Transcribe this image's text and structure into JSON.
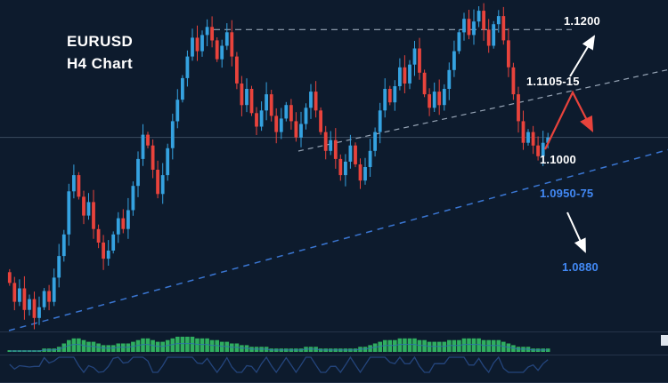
{
  "header": {
    "symbol": "EURUSD",
    "timeframe_label": "H4 Chart"
  },
  "annotations": {
    "resistance_label": "1.1200",
    "supply_zone_label": "1.1105-15",
    "support_label": "1.1000",
    "demand_zone_label": "1.0950-75",
    "target_label": "1.0880"
  },
  "colors": {
    "background": "#0d1b2d",
    "bull": "#35a2e0",
    "bear": "#e8433c",
    "histogram": "#2fae5f",
    "trendline_blue": "#3a76d2",
    "label_blue": "#4289f5",
    "dashed_gray": "#97a5b6",
    "grid": "#3a4a5e",
    "white": "#ffffff"
  },
  "chart_data": {
    "type": "candlestick",
    "title": "EURUSD H4 Chart",
    "symbol": "EURUSD",
    "timeframe": "H4",
    "price_axis": {
      "min": 1.0645,
      "max": 1.1245
    },
    "first_open": 1.075,
    "closes": [
      1.073,
      1.0695,
      1.072,
      1.068,
      1.07,
      1.0665,
      1.0685,
      1.0715,
      1.0695,
      1.074,
      1.078,
      1.082,
      1.09,
      1.093,
      1.089,
      1.0855,
      1.088,
      1.083,
      1.0805,
      1.0775,
      1.079,
      1.082,
      1.085,
      1.083,
      1.0865,
      1.091,
      1.096,
      1.1005,
      1.0985,
      1.094,
      1.0895,
      1.093,
      1.098,
      1.103,
      1.107,
      1.111,
      1.115,
      1.1185,
      1.116,
      1.119,
      1.1205,
      1.118,
      1.1145,
      1.117,
      1.1195,
      1.115,
      1.11,
      1.106,
      1.109,
      1.1045,
      1.102,
      1.105,
      1.108,
      1.104,
      1.101,
      1.1035,
      1.106,
      1.103,
      1.1,
      1.1025,
      1.1055,
      1.1085,
      1.105,
      1.101,
      1.0975,
      1.0995,
      1.096,
      1.093,
      1.0955,
      1.0985,
      1.095,
      1.092,
      1.0945,
      1.0975,
      1.101,
      1.105,
      1.109,
      1.1065,
      1.1095,
      1.113,
      1.11,
      1.1135,
      1.1165,
      1.112,
      1.108,
      1.1055,
      1.1085,
      1.106,
      1.109,
      1.1125,
      1.116,
      1.1195,
      1.122,
      1.119,
      1.1215,
      1.1235,
      1.12,
      1.117,
      1.121,
      1.1225,
      1.118,
      1.113,
      1.108,
      1.103,
      1.099,
      1.101,
      1.0985,
      1.0965,
      1.099,
      1.1
    ],
    "histogram": [
      1,
      1,
      1,
      1,
      1,
      1,
      1,
      2,
      2,
      2,
      3,
      5,
      7,
      8,
      8,
      7,
      6,
      6,
      5,
      4,
      4,
      4,
      5,
      5,
      5,
      6,
      7,
      8,
      8,
      7,
      6,
      6,
      7,
      8,
      9,
      9,
      9,
      9,
      8,
      8,
      8,
      7,
      7,
      6,
      6,
      5,
      5,
      4,
      4,
      3,
      3,
      3,
      3,
      2,
      2,
      2,
      2,
      2,
      2,
      2,
      3,
      3,
      3,
      2,
      2,
      2,
      2,
      2,
      2,
      2,
      2,
      3,
      3,
      4,
      5,
      6,
      7,
      7,
      7,
      8,
      8,
      8,
      8,
      7,
      7,
      6,
      6,
      6,
      6,
      7,
      7,
      7,
      8,
      8,
      8,
      8,
      7,
      7,
      7,
      7,
      6,
      5,
      4,
      3,
      3,
      3,
      2,
      2,
      2,
      2
    ],
    "levels": [
      {
        "price": 1.12,
        "label": "1.1200",
        "style": "dashed"
      },
      {
        "price": 1.1,
        "label": "1.1000",
        "style": "solid"
      }
    ],
    "trendlines": [
      {
        "name": "ascending-trendline-gray",
        "style": "dashed"
      },
      {
        "name": "ascending-trendline-blue",
        "style": "dashed"
      }
    ],
    "arrows": [
      {
        "color": "white",
        "direction": "up",
        "target": "1.1200"
      },
      {
        "color": "red",
        "direction": "up-then-down",
        "target": "1.1105-15"
      },
      {
        "color": "white",
        "direction": "down",
        "target": "1.0880"
      }
    ]
  }
}
